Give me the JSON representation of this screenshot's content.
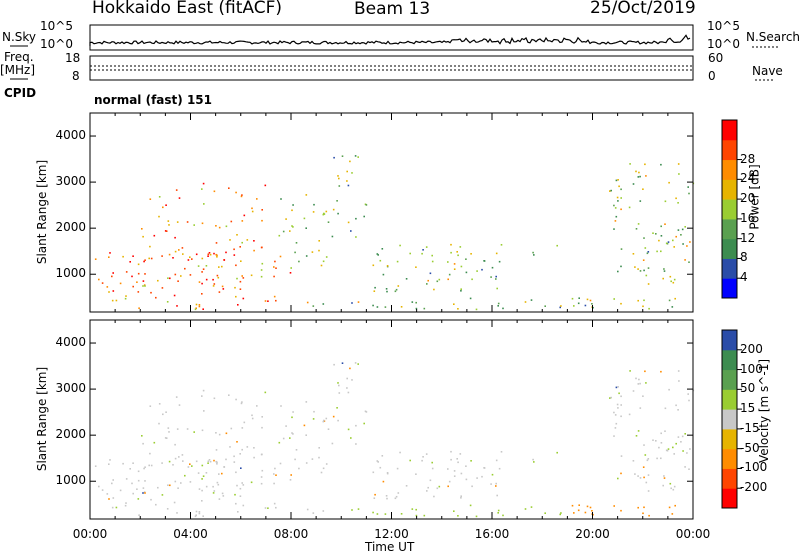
{
  "header": {
    "title": "Hokkaido East (fitACF)",
    "beam": "Beam 13",
    "date": "25/Oct/2019"
  },
  "strip": {
    "nsky_label": "N.Sky",
    "nsearch_label": "N.Search",
    "nsky_ticks": [
      "10^5",
      "10^0"
    ],
    "nsky_right_ticks": [
      "10^5",
      "10^0"
    ],
    "freq_label": "Freq.",
    "freq_unit": "[MHz]",
    "freq_ticks": [
      "18",
      "8"
    ],
    "nave_label": "Nave",
    "nave_ticks": [
      "60",
      "0"
    ],
    "cpid_label": "CPID",
    "cpid_value": "normal (fast) 151"
  },
  "colors": {
    "power_scale": [
      "#0000ff",
      "#2a4ca8",
      "#3c8c50",
      "#5aa050",
      "#9acd32",
      "#e6b400",
      "#ff8c00",
      "#ff4500",
      "#ff0000"
    ],
    "velocity_scale": [
      "#ff0000",
      "#ff4500",
      "#ff8c00",
      "#e6b400",
      "#c8c8c8",
      "#9acd32",
      "#5aa050",
      "#3c8c50",
      "#2a4ca8"
    ]
  },
  "chart_data": [
    {
      "type": "heatmap",
      "name": "power",
      "xlabel": "",
      "ylabel": "Slant Range [km]",
      "yticks": [
        "1000",
        "2000",
        "3000",
        "4000"
      ],
      "ylim": [
        180,
        4500
      ],
      "xlim": [
        0,
        24
      ],
      "colorbar": {
        "label": "Power [dB]",
        "ticks": [
          "4",
          "8",
          "12",
          "16",
          "20",
          "24",
          "28"
        ],
        "range": [
          0,
          30
        ]
      }
    },
    {
      "type": "heatmap",
      "name": "velocity",
      "xlabel": "Time UT",
      "ylabel": "Slant Range [km]",
      "yticks": [
        "1000",
        "2000",
        "3000",
        "4000"
      ],
      "ylim": [
        180,
        4500
      ],
      "xlim": [
        0,
        24
      ],
      "xticks": [
        "00:00",
        "04:00",
        "08:00",
        "12:00",
        "16:00",
        "20:00",
        "00:00"
      ],
      "colorbar": {
        "label": "Velocity [m s^-1]",
        "ticks": [
          "200",
          "100",
          "50",
          "15",
          "-15",
          "-50",
          "-100",
          "-200"
        ]
      }
    }
  ]
}
